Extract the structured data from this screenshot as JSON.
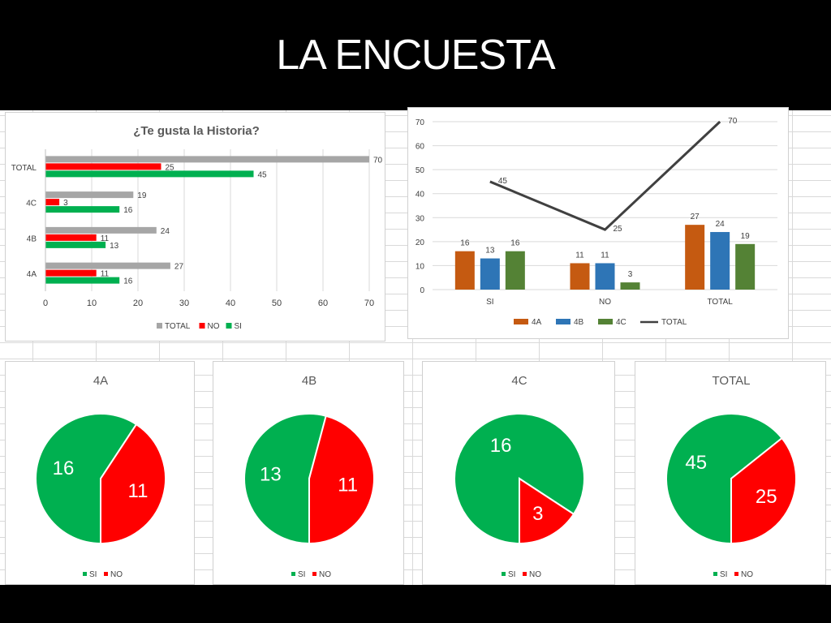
{
  "slide": {
    "title": "LA ENCUESTA"
  },
  "colors": {
    "si": "#00b050",
    "no": "#ff0000",
    "total": "#a6a6a6",
    "g4a": "#c55a11",
    "g4b": "#2e75b6",
    "g4c": "#548235",
    "line": "#404040"
  },
  "chart_data": [
    {
      "type": "bar",
      "orientation": "horizontal",
      "title": "¿Te gusta la Historia?",
      "categories": [
        "4A",
        "4B",
        "4C",
        "TOTAL"
      ],
      "series": [
        {
          "name": "TOTAL",
          "values": [
            27,
            24,
            19,
            70
          ]
        },
        {
          "name": "NO",
          "values": [
            11,
            11,
            3,
            25
          ]
        },
        {
          "name": "SI",
          "values": [
            16,
            13,
            16,
            45
          ]
        }
      ],
      "xlim": [
        0,
        70
      ],
      "xticks": [
        0,
        10,
        20,
        30,
        40,
        50,
        60,
        70
      ],
      "legend": "bottom",
      "grid": true
    },
    {
      "type": "bar",
      "title": "",
      "categories": [
        "SI",
        "NO",
        "TOTAL"
      ],
      "series": [
        {
          "name": "4A",
          "values": [
            16,
            11,
            27
          ]
        },
        {
          "name": "4B",
          "values": [
            13,
            11,
            24
          ]
        },
        {
          "name": "4C",
          "values": [
            16,
            3,
            19
          ]
        }
      ],
      "line_series": {
        "name": "TOTAL",
        "values": [
          45,
          25,
          70
        ]
      },
      "ylim": [
        0,
        70
      ],
      "yticks": [
        0,
        10,
        20,
        30,
        40,
        50,
        60,
        70
      ],
      "legend": "bottom",
      "grid": true
    },
    {
      "type": "pie",
      "title": "4A",
      "labels": [
        "SI",
        "NO"
      ],
      "values": [
        16,
        11
      ],
      "legend": "bottom"
    },
    {
      "type": "pie",
      "title": "4B",
      "labels": [
        "SI",
        "NO"
      ],
      "values": [
        13,
        11
      ],
      "legend": "bottom"
    },
    {
      "type": "pie",
      "title": "4C",
      "labels": [
        "SI",
        "NO"
      ],
      "values": [
        16,
        3
      ],
      "legend": "bottom"
    },
    {
      "type": "pie",
      "title": "TOTAL",
      "labels": [
        "SI",
        "NO"
      ],
      "values": [
        45,
        25
      ],
      "legend": "bottom"
    }
  ]
}
